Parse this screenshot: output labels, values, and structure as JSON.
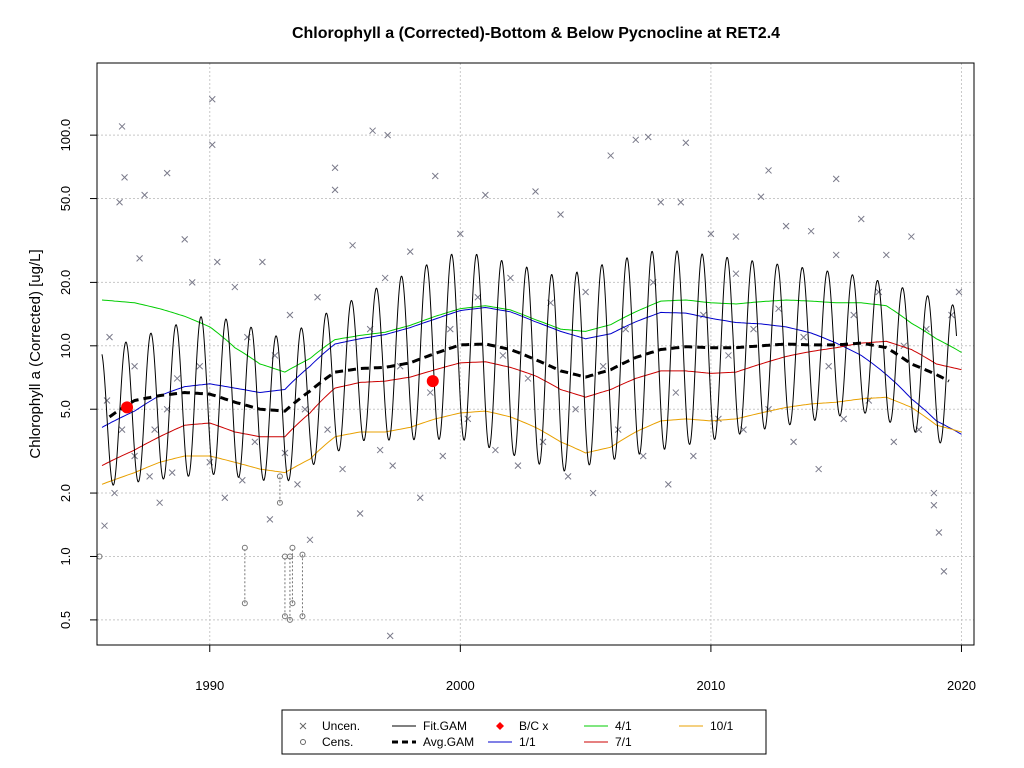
{
  "chart_data": {
    "type": "scatter",
    "title": "Chlorophyll a (Corrected)-Bottom & Below Pycnocline at RET2.4",
    "xlabel": "",
    "ylabel": "Chlorophyll a (Corrected) [ug/L]",
    "y_scale": "log",
    "xlim": [
      1985.5,
      2020.5
    ],
    "ylim": [
      0.38,
      220
    ],
    "x_ticks": [
      1990,
      2000,
      2010,
      2020
    ],
    "x_tick_labels": [
      "1990",
      "2000",
      "2010",
      "2020"
    ],
    "y_ticks": [
      0.5,
      1.0,
      2.0,
      5.0,
      10.0,
      20.0,
      50.0,
      100.0
    ],
    "y_tick_labels": [
      "0.5",
      "1.0",
      "2.0",
      "5.0",
      "10.0",
      "20.0",
      "50.0",
      "100.0"
    ],
    "grid": true,
    "legend_position": "bottom",
    "legend": [
      {
        "label": "Uncen.",
        "symbol": "x",
        "color": "#666666"
      },
      {
        "label": "Cens.",
        "symbol": "circle",
        "color": "#666666"
      },
      {
        "label": "Fit.GAM",
        "symbol": "line",
        "color": "#000000"
      },
      {
        "label": "Avg.GAM",
        "symbol": "dashed",
        "color": "#000000"
      },
      {
        "label": "B/C x",
        "symbol": "diamond",
        "color": "#ff0000"
      },
      {
        "label": "1/1",
        "symbol": "line",
        "color": "#0000cc"
      },
      {
        "label": "4/1",
        "symbol": "line",
        "color": "#00cc00"
      },
      {
        "label": "7/1",
        "symbol": "line",
        "color": "#cc0000"
      },
      {
        "label": "10/1",
        "symbol": "line",
        "color": "#e8a000"
      }
    ],
    "series": [
      {
        "name": "1/1",
        "color": "#0000cc",
        "x": [
          1985.7,
          1987,
          1988,
          1989,
          1990,
          1991,
          1992,
          1993,
          1994,
          1995,
          1996,
          1997,
          1998,
          1999,
          2000,
          2001,
          2002,
          2003,
          2004,
          2005,
          2006,
          2007,
          2008,
          2009,
          2010,
          2011,
          2012,
          2013,
          2014,
          2015,
          2016,
          2017,
          2018,
          2019,
          2020
        ],
        "y": [
          4.1,
          4.9,
          5.8,
          6.4,
          6.6,
          6.3,
          6.0,
          6.2,
          8.0,
          10.2,
          10.8,
          11.3,
          12.2,
          13.4,
          14.7,
          15.2,
          14.5,
          13.0,
          11.7,
          10.8,
          11.4,
          13.0,
          14.4,
          14.3,
          13.5,
          12.9,
          12.7,
          12.3,
          11.5,
          10.3,
          9.0,
          7.3,
          5.6,
          4.4,
          3.8
        ]
      },
      {
        "name": "4/1",
        "color": "#00cc00",
        "x": [
          1985.7,
          1987,
          1988,
          1989,
          1990,
          1991,
          1992,
          1993,
          1994,
          1995,
          1996,
          1997,
          1998,
          1999,
          2000,
          2001,
          2002,
          2003,
          2004,
          2005,
          2006,
          2007,
          2008,
          2009,
          2010,
          2011,
          2012,
          2013,
          2014,
          2015,
          2016,
          2017,
          2018,
          2019,
          2020
        ],
        "y": [
          16.5,
          16.0,
          15.0,
          13.8,
          12.3,
          9.8,
          8.2,
          7.5,
          8.7,
          10.7,
          11.2,
          11.6,
          12.5,
          13.8,
          15.0,
          15.5,
          14.8,
          13.3,
          12.0,
          11.7,
          12.6,
          14.5,
          16.3,
          16.5,
          16.0,
          15.8,
          16.2,
          16.5,
          16.3,
          16.0,
          16.0,
          15.5,
          12.8,
          10.8,
          9.3
        ]
      },
      {
        "name": "7/1",
        "color": "#cc0000",
        "x": [
          1985.7,
          1987,
          1988,
          1989,
          1990,
          1991,
          1992,
          1993,
          1994,
          1995,
          1996,
          1997,
          1998,
          1999,
          2000,
          2001,
          2002,
          2003,
          2004,
          2005,
          2006,
          2007,
          2008,
          2009,
          2010,
          2011,
          2012,
          2013,
          2014,
          2015,
          2016,
          2017,
          2018,
          2019,
          2020
        ],
        "y": [
          2.7,
          3.2,
          3.7,
          4.2,
          4.3,
          3.9,
          3.7,
          3.7,
          4.8,
          6.3,
          6.7,
          6.8,
          7.1,
          7.7,
          8.3,
          8.4,
          7.9,
          7.2,
          6.2,
          5.7,
          6.2,
          7.0,
          7.6,
          7.6,
          7.4,
          7.5,
          8.2,
          8.9,
          9.4,
          9.8,
          10.3,
          10.5,
          9.6,
          8.2,
          7.7
        ]
      },
      {
        "name": "10/1",
        "color": "#e8a000",
        "x": [
          1985.7,
          1987,
          1988,
          1989,
          1990,
          1991,
          1992,
          1993,
          1994,
          1995,
          1996,
          1997,
          1998,
          1999,
          2000,
          2001,
          2002,
          2003,
          2004,
          2005,
          2006,
          2007,
          2008,
          2009,
          2010,
          2011,
          2012,
          2013,
          2014,
          2015,
          2016,
          2017,
          2018,
          2019,
          2020
        ],
        "y": [
          2.2,
          2.5,
          2.8,
          3.0,
          3.0,
          2.8,
          2.6,
          2.5,
          2.9,
          3.7,
          3.9,
          3.9,
          4.1,
          4.5,
          4.8,
          4.9,
          4.6,
          4.1,
          3.5,
          3.1,
          3.3,
          3.9,
          4.4,
          4.5,
          4.4,
          4.5,
          4.8,
          5.1,
          5.3,
          5.4,
          5.6,
          5.7,
          5.1,
          4.2,
          3.9
        ]
      },
      {
        "name": "Avg.GAM",
        "color": "#000000",
        "x": [
          1986,
          1987,
          1988,
          1989,
          1990,
          1991,
          1992,
          1993,
          1994,
          1995,
          1996,
          1997,
          1998,
          1999,
          2000,
          2001,
          2002,
          2003,
          2004,
          2005,
          2006,
          2007,
          2008,
          2009,
          2010,
          2011,
          2012,
          2013,
          2014,
          2015,
          2016,
          2017,
          2018,
          2019,
          2019.5
        ],
        "y": [
          4.6,
          5.5,
          5.8,
          6.0,
          5.9,
          5.4,
          5.0,
          4.9,
          6.1,
          7.5,
          7.8,
          7.9,
          8.3,
          9.2,
          10.1,
          10.2,
          9.6,
          8.6,
          7.6,
          7.1,
          7.7,
          8.8,
          9.6,
          9.9,
          9.8,
          9.8,
          10.0,
          10.2,
          10.1,
          10.1,
          10.3,
          9.8,
          8.2,
          7.3,
          6.8
        ]
      },
      {
        "name": "Fit.GAM",
        "color": "#000000",
        "seasonal_center_x": [
          1985.7,
          1990,
          1993,
          1996,
          2000,
          2004,
          2008,
          2012,
          2016,
          2019.8
        ],
        "seasonal_center_y": [
          4.5,
          5.9,
          4.9,
          7.8,
          10.1,
          7.3,
          9.6,
          10.0,
          10.2,
          7.0
        ],
        "seasonal_amplitude_x": [
          1985.7,
          1990,
          1993,
          1996,
          2000,
          2004,
          2008,
          2012,
          2016,
          2019.8
        ],
        "seasonal_amplitude_y": [
          2.1,
          2.4,
          2.2,
          2.2,
          2.8,
          2.9,
          3.0,
          2.5,
          2.1,
          2.2
        ]
      },
      {
        "name": "B/C x",
        "color": "#ff0000",
        "x": [
          1986.7,
          1998.9
        ],
        "y": [
          5.1,
          6.8
        ]
      }
    ],
    "uncensored_points": {
      "x": [
        1985.8,
        1985.9,
        1986.0,
        1986.2,
        1986.4,
        1986.5,
        1986.6,
        1987.0,
        1987.2,
        1987.4,
        1987.6,
        1987.8,
        1988.0,
        1988.3,
        1988.5,
        1988.7,
        1989.0,
        1989.3,
        1989.6,
        1990.0,
        1990.1,
        1990.3,
        1990.6,
        1991.0,
        1991.3,
        1991.5,
        1991.8,
        1992.1,
        1992.4,
        1992.6,
        1993.0,
        1993.2,
        1993.5,
        1993.8,
        1994.0,
        1994.3,
        1994.7,
        1995.0,
        1995.3,
        1995.7,
        1996.0,
        1996.4,
        1996.8,
        1997.0,
        1997.3,
        1997.6,
        1998.0,
        1998.4,
        1998.8,
        1999.0,
        1999.3,
        1999.6,
        2000.0,
        2000.3,
        2000.7,
        2001.0,
        2001.4,
        2001.7,
        2002.0,
        2002.3,
        2002.7,
        2003.0,
        2003.3,
        2003.6,
        2004.0,
        2004.3,
        2004.6,
        2005.0,
        2005.3,
        2005.7,
        2006.0,
        2006.3,
        2006.6,
        2007.0,
        2007.3,
        2007.7,
        2008.0,
        2008.3,
        2008.6,
        2009.0,
        2009.3,
        2009.7,
        2010.0,
        2010.3,
        2010.7,
        2011.0,
        2011.3,
        2011.7,
        2012.0,
        2012.3,
        2012.7,
        2013.0,
        2013.3,
        2013.7,
        2014.0,
        2014.3,
        2014.7,
        2015.0,
        2015.3,
        2015.7,
        2016.0,
        2016.3,
        2016.7,
        2017.0,
        2017.3,
        2017.7,
        2018.0,
        2018.3,
        2018.6,
        2018.9,
        2019.1,
        2019.3,
        2019.6,
        2019.9,
        1990.1,
        1996.5,
        1997.1,
        1986.5,
        1987.0,
        1988.3,
        1995.0,
        2007.5,
        2008.8,
        2011.0,
        2012.3,
        2015.0,
        1997.2,
        2018.9
      ],
      "y": [
        1.4,
        5.5,
        11.0,
        2.0,
        48.0,
        110.0,
        63.0,
        3.0,
        26.0,
        52.0,
        2.4,
        4.0,
        1.8,
        66.0,
        2.5,
        7.0,
        32.0,
        20.0,
        8.0,
        2.8,
        90.0,
        25.0,
        1.9,
        19.0,
        2.3,
        11.0,
        3.5,
        25.0,
        1.5,
        9.0,
        3.1,
        14.0,
        2.2,
        5.0,
        1.2,
        17.0,
        4.0,
        70.0,
        2.6,
        30.0,
        1.6,
        12.0,
        3.2,
        21.0,
        2.7,
        8.0,
        28.0,
        1.9,
        6.0,
        64.0,
        3.0,
        12.0,
        34.0,
        4.5,
        17.0,
        52.0,
        3.2,
        9.0,
        21.0,
        2.7,
        7.0,
        54.0,
        3.5,
        16.0,
        42.0,
        2.4,
        5.0,
        18.0,
        2.0,
        8.0,
        80.0,
        4.0,
        12.0,
        95.0,
        3.0,
        20.0,
        48.0,
        2.2,
        6.0,
        92.0,
        3.0,
        14.0,
        34.0,
        4.5,
        9.0,
        22.0,
        4.0,
        12.0,
        51.0,
        5.0,
        15.0,
        37.0,
        3.5,
        11.0,
        35.0,
        2.6,
        8.0,
        27.0,
        4.5,
        14.0,
        40.0,
        5.5,
        18.0,
        27.0,
        3.5,
        10.0,
        33.0,
        4.0,
        12.0,
        2.0,
        1.3,
        0.85,
        14.0,
        18.0,
        148.0,
        105.0,
        100.0,
        4.0,
        8.0,
        5.0,
        55.0,
        98.0,
        48.0,
        33.0,
        68.0,
        62.0,
        0.42,
        1.75
      ]
    },
    "censored_points": [
      {
        "x": 1985.6,
        "y_low": 1.0,
        "y_high": 1.0
      },
      {
        "x": 1991.4,
        "y_low": 0.6,
        "y_high": 1.1
      },
      {
        "x": 1992.8,
        "y_low": 1.8,
        "y_high": 2.4
      },
      {
        "x": 1993.0,
        "y_low": 0.52,
        "y_high": 1.0
      },
      {
        "x": 1993.2,
        "y_low": 0.5,
        "y_high": 1.0
      },
      {
        "x": 1993.3,
        "y_low": 0.6,
        "y_high": 1.1
      },
      {
        "x": 1993.7,
        "y_low": 0.52,
        "y_high": 1.02
      }
    ]
  }
}
